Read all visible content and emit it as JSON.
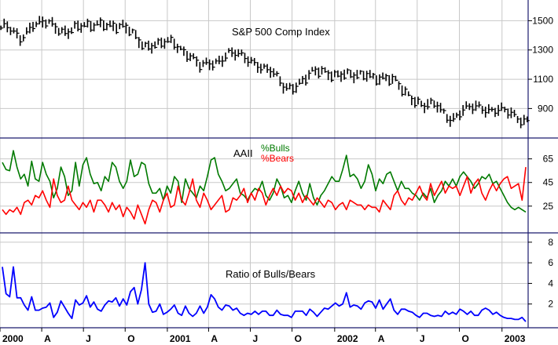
{
  "colors": {
    "background": "#ffffff",
    "price": "#000000",
    "bulls": "#007a00",
    "bears": "#ff0000",
    "ratio": "#0000ff",
    "grid": "#c8c8c8",
    "divider": "#1a1a6e",
    "axis_text": "#000000"
  },
  "chart_data": [
    {
      "type": "bar",
      "style": "ohlc-weekly",
      "title": "S&P 500 Comp Index",
      "yticks": [
        900,
        1100,
        1300,
        1500
      ],
      "ylim": [
        720,
        1620
      ],
      "grid": true,
      "x_start": "2000-01-03",
      "x_end": "2003-02-28",
      "series": [
        {
          "dates": [
            "2000-01",
            "2000-02",
            "2000-03",
            "2000-04",
            "2000-05",
            "2000-06",
            "2000-07",
            "2000-08",
            "2000-09",
            "2000-10",
            "2000-11",
            "2000-12",
            "2001-01",
            "2001-02",
            "2001-03",
            "2001-04",
            "2001-05",
            "2001-06",
            "2001-07",
            "2001-08",
            "2001-09",
            "2001-10",
            "2001-11",
            "2001-12",
            "2002-01",
            "2002-02",
            "2002-03",
            "2002-04",
            "2002-05",
            "2002-06",
            "2002-07",
            "2002-08",
            "2002-09",
            "2002-10",
            "2002-11",
            "2002-12",
            "2003-01",
            "2003-02"
          ],
          "close": [
            1450,
            1370,
            1490,
            1470,
            1430,
            1460,
            1440,
            1500,
            1450,
            1420,
            1340,
            1320,
            1360,
            1280,
            1170,
            1220,
            1280,
            1240,
            1220,
            1150,
            1030,
            1080,
            1130,
            1150,
            1140,
            1100,
            1150,
            1100,
            1070,
            1000,
            900,
            920,
            830,
            880,
            920,
            890,
            860,
            830
          ]
        }
      ]
    },
    {
      "type": "line",
      "title": "AAII",
      "legend": [
        "%Bulls",
        "%Bears"
      ],
      "yticks": [
        25,
        45,
        65
      ],
      "ylim": [
        5,
        80
      ],
      "grid": true,
      "x_start": "2000-01-03",
      "x_end": "2003-02-28",
      "series": [
        {
          "name": "%Bulls",
          "values": [
            62,
            56,
            55,
            72,
            58,
            48,
            52,
            42,
            63,
            48,
            46,
            62,
            52,
            46,
            32,
            40,
            58,
            50,
            34,
            38,
            62,
            42,
            60,
            66,
            52,
            44,
            45,
            38,
            50,
            46,
            62,
            58,
            46,
            40,
            46,
            64,
            50,
            52,
            62,
            60,
            44,
            36,
            36,
            40,
            30,
            42,
            36,
            50,
            46,
            28,
            48,
            40,
            36,
            32,
            42,
            38,
            50,
            64,
            66,
            52,
            46,
            38,
            40,
            44,
            48,
            36,
            34,
            30,
            36,
            40,
            38,
            46,
            34,
            30,
            36,
            48,
            42,
            32,
            34,
            28,
            38,
            46,
            36,
            30,
            44,
            32,
            26,
            34,
            38,
            44,
            50,
            46,
            46,
            56,
            68,
            50,
            52,
            48,
            40,
            46,
            60,
            52,
            38,
            48,
            44,
            52,
            54,
            46,
            38,
            46,
            40,
            40,
            36,
            34,
            30,
            36,
            32,
            40,
            28,
            34,
            38,
            46,
            42,
            48,
            42,
            50,
            54,
            50,
            46,
            40,
            44,
            50,
            48,
            52,
            44,
            46,
            40,
            34,
            28,
            24,
            22,
            24,
            22,
            20
          ]
        },
        {
          "name": "%Bears",
          "values": [
            22,
            18,
            22,
            20,
            24,
            18,
            28,
            30,
            26,
            34,
            32,
            38,
            30,
            24,
            48,
            34,
            28,
            30,
            42,
            30,
            26,
            22,
            28,
            24,
            30,
            20,
            30,
            30,
            26,
            20,
            28,
            22,
            26,
            16,
            24,
            20,
            14,
            26,
            18,
            10,
            22,
            30,
            28,
            20,
            30,
            36,
            24,
            26,
            42,
            30,
            26,
            36,
            48,
            30,
            24,
            36,
            30,
            22,
            26,
            30,
            34,
            20,
            22,
            32,
            30,
            34,
            40,
            28,
            36,
            30,
            40,
            36,
            26,
            34,
            40,
            34,
            42,
            36,
            40,
            38,
            30,
            36,
            28,
            34,
            30,
            26,
            32,
            28,
            24,
            30,
            28,
            22,
            26,
            28,
            22,
            30,
            28,
            26,
            26,
            22,
            26,
            24,
            24,
            20,
            30,
            26,
            22,
            34,
            38,
            30,
            26,
            32,
            30,
            36,
            42,
            34,
            30,
            44,
            34,
            40,
            46,
            36,
            42,
            40,
            42,
            34,
            42,
            50,
            36,
            44,
            48,
            36,
            30,
            38,
            44,
            38,
            44,
            48,
            50,
            40,
            42,
            44,
            30,
            58
          ]
        }
      ]
    },
    {
      "type": "line",
      "title": "Ratio of Bulls/Bears",
      "yticks": [
        2,
        4,
        6,
        8
      ],
      "ylim": [
        0,
        8.6
      ],
      "grid": true,
      "x_start": "2000-01-03",
      "x_end": "2003-02-28",
      "series": [
        {
          "name": "Ratio of Bulls/Bears",
          "values": [
            5.6,
            3.0,
            2.7,
            5.6,
            2.6,
            2.6,
            1.9,
            1.4,
            2.7,
            1.4,
            1.4,
            1.6,
            1.7,
            2.1,
            0.7,
            1.2,
            2.3,
            1.7,
            1.1,
            0.6,
            2.4,
            1.9,
            2.1,
            2.8,
            1.7,
            2.2,
            1.5,
            1.3,
            1.9,
            2.3,
            2.2,
            2.6,
            1.8,
            2.5,
            1.9,
            3.2,
            3.6,
            2.0,
            3.4,
            6.0,
            2.0,
            1.2,
            1.3,
            2.0,
            1.0,
            1.2,
            1.5,
            1.9,
            1.1,
            0.9,
            1.8,
            1.1,
            0.8,
            1.1,
            1.8,
            1.1,
            1.7,
            2.9,
            2.5,
            1.7,
            1.4,
            1.9,
            1.8,
            1.4,
            1.6,
            1.1,
            0.9,
            1.1,
            1.0,
            1.3,
            1.0,
            1.3,
            1.3,
            0.9,
            0.9,
            1.4,
            1.0,
            0.9,
            0.9,
            0.7,
            1.3,
            1.3,
            1.3,
            0.9,
            1.5,
            1.2,
            0.8,
            1.2,
            1.6,
            1.5,
            1.8,
            2.1,
            1.8,
            2.0,
            3.1,
            1.7,
            1.9,
            1.8,
            1.5,
            2.1,
            2.3,
            2.2,
            1.6,
            2.4,
            1.5,
            2.0,
            2.5,
            1.4,
            1.0,
            1.5,
            1.5,
            1.3,
            1.2,
            0.9,
            0.7,
            1.1,
            1.1,
            0.9,
            0.8,
            0.9,
            0.8,
            1.3,
            1.0,
            1.2,
            1.0,
            1.5,
            1.3,
            1.0,
            1.3,
            0.9,
            0.9,
            1.4,
            1.6,
            1.4,
            1.0,
            1.2,
            0.9,
            0.7,
            0.6,
            0.6,
            0.5,
            0.5,
            0.7,
            0.3
          ]
        }
      ]
    }
  ],
  "x_axis": {
    "labels": [
      {
        "text": "2000",
        "date": "2000-01-03"
      },
      {
        "text": "A",
        "date": "2000-04-03"
      },
      {
        "text": "J",
        "date": "2000-07-03"
      },
      {
        "text": "O",
        "date": "2000-10-02"
      },
      {
        "text": "2001",
        "date": "2001-01-02"
      },
      {
        "text": "A",
        "date": "2001-04-02"
      },
      {
        "text": "J",
        "date": "2001-07-02"
      },
      {
        "text": "O",
        "date": "2001-10-01"
      },
      {
        "text": "2002",
        "date": "2002-01-02"
      },
      {
        "text": "A",
        "date": "2002-04-01"
      },
      {
        "text": "J",
        "date": "2002-07-01"
      },
      {
        "text": "O",
        "date": "2002-10-01"
      },
      {
        "text": "2003",
        "date": "2003-01-02"
      }
    ]
  }
}
